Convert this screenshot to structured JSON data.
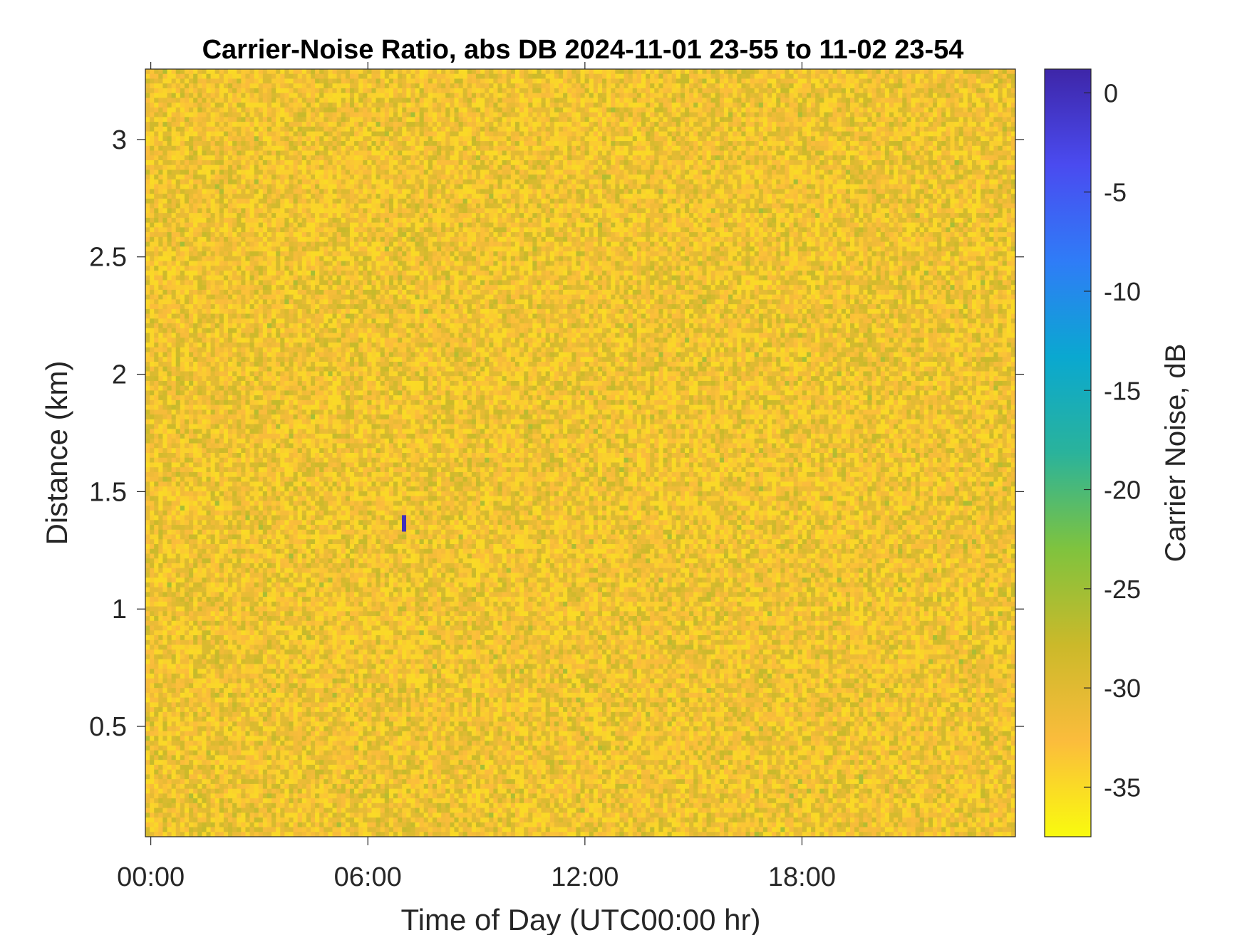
{
  "chart_data": {
    "type": "heatmap",
    "title": "Carrier-Noise Ratio, abs DB 2024-11-01 23-55 to 11-02 23-54",
    "xlabel": "Time of Day (UTC00:00 hr)",
    "ylabel": "Distance (km)",
    "x_ticks": [
      "00:00",
      "06:00",
      "12:00",
      "18:00"
    ],
    "x_tick_hours": [
      0,
      6,
      12,
      18
    ],
    "xlim_hours": [
      -0.15,
      23.9
    ],
    "y_ticks": [
      0.5,
      1,
      1.5,
      2,
      2.5,
      3
    ],
    "y_tick_labels": [
      "0.5",
      "1",
      "1.5",
      "2",
      "2.5",
      "3"
    ],
    "ylim": [
      0.03,
      3.3
    ],
    "colorbar": {
      "label": "Carrier Noise, dB",
      "ticks": [
        0,
        -5,
        -10,
        -15,
        -20,
        -25,
        -30,
        -35
      ],
      "tick_labels": [
        "0",
        "-5",
        "-10",
        "-15",
        "-20",
        "-25",
        "-30",
        "-35"
      ],
      "range": [
        -37.5,
        1.2
      ],
      "colormap": "parula-reversed",
      "stops": [
        "#f9fb0e",
        "#fbbc3c",
        "#cbb92a",
        "#7fc33e",
        "#2ab39b",
        "#0aa8d0",
        "#2f7cf7",
        "#4a4bf0",
        "#3e26a8"
      ]
    },
    "background_value_db": -31,
    "background_range_db": [
      -35,
      -26
    ],
    "anomalies": [
      {
        "time_hours": 7.0,
        "distance_km": [
          1.33,
          1.4
        ],
        "value_db": 0
      }
    ]
  }
}
